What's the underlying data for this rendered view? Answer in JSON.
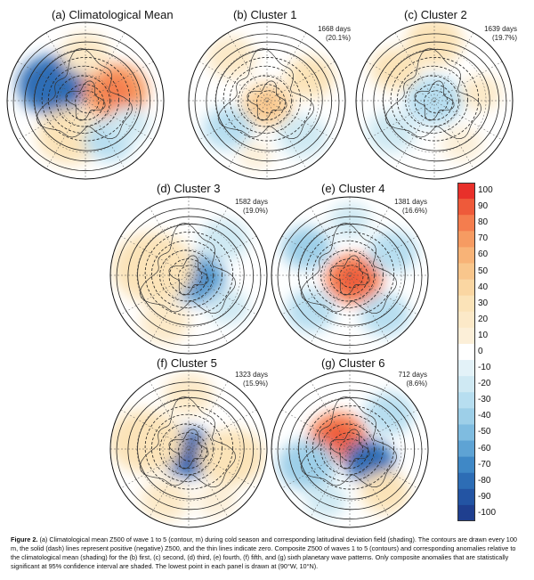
{
  "panels": [
    {
      "id": "a",
      "title": "(a) Climatological Mean",
      "days": "",
      "pct": "",
      "blobs": [
        {
          "dx": -0.42,
          "dy": -0.2,
          "r": 0.42,
          "v": -75
        },
        {
          "dx": 0.38,
          "dy": -0.12,
          "r": 0.4,
          "v": 70
        },
        {
          "dx": -0.2,
          "dy": 0.45,
          "r": 0.4,
          "v": 35
        },
        {
          "dx": 0.3,
          "dy": 0.5,
          "r": 0.3,
          "v": -30
        },
        {
          "dx": 0.0,
          "dy": -0.6,
          "r": 0.3,
          "v": 20
        },
        {
          "dx": 0.55,
          "dy": 0.3,
          "r": 0.25,
          "v": -15
        }
      ]
    },
    {
      "id": "b",
      "title": "(b) Cluster 1",
      "days": "1668 days",
      "pct": "(20.1%)",
      "blobs": [
        {
          "dx": 0.0,
          "dy": 0.05,
          "r": 0.32,
          "v": 45
        },
        {
          "dx": -0.45,
          "dy": -0.55,
          "r": 0.3,
          "v": 25
        },
        {
          "dx": 0.55,
          "dy": -0.3,
          "r": 0.3,
          "v": 30
        },
        {
          "dx": -0.5,
          "dy": 0.35,
          "r": 0.3,
          "v": -25
        },
        {
          "dx": 0.45,
          "dy": 0.45,
          "r": 0.3,
          "v": -20
        },
        {
          "dx": -0.15,
          "dy": 0.7,
          "r": 0.2,
          "v": 15
        }
      ]
    },
    {
      "id": "c",
      "title": "(c) Cluster 2",
      "days": "1639 days",
      "pct": "(19.7%)",
      "blobs": [
        {
          "dx": 0.0,
          "dy": 0.0,
          "r": 0.35,
          "v": -30
        },
        {
          "dx": 0.0,
          "dy": -0.75,
          "r": 0.35,
          "v": 35
        },
        {
          "dx": -0.5,
          "dy": -0.4,
          "r": 0.3,
          "v": 30
        },
        {
          "dx": 0.6,
          "dy": -0.1,
          "r": 0.25,
          "v": 25
        },
        {
          "dx": -0.55,
          "dy": 0.4,
          "r": 0.3,
          "v": -20
        },
        {
          "dx": 0.35,
          "dy": 0.55,
          "r": 0.25,
          "v": 15
        }
      ]
    },
    {
      "id": "d",
      "title": "(d) Cluster 3",
      "days": "1582 days",
      "pct": "(19.0%)",
      "blobs": [
        {
          "dx": 0.1,
          "dy": 0.05,
          "r": 0.35,
          "v": -60
        },
        {
          "dx": -0.45,
          "dy": -0.1,
          "r": 0.5,
          "v": 30
        },
        {
          "dx": 0.45,
          "dy": -0.45,
          "r": 0.3,
          "v": -20
        },
        {
          "dx": -0.3,
          "dy": 0.6,
          "r": 0.3,
          "v": 20
        },
        {
          "dx": 0.5,
          "dy": 0.4,
          "r": 0.25,
          "v": -15
        }
      ]
    },
    {
      "id": "e",
      "title": "(e) Cluster 4",
      "days": "1381 days",
      "pct": "(16.6%)",
      "blobs": [
        {
          "dx": 0.05,
          "dy": 0.05,
          "r": 0.35,
          "v": 80
        },
        {
          "dx": -0.55,
          "dy": -0.35,
          "r": 0.3,
          "v": -35
        },
        {
          "dx": 0.55,
          "dy": -0.3,
          "r": 0.3,
          "v": -30
        },
        {
          "dx": -0.5,
          "dy": 0.45,
          "r": 0.3,
          "v": -30
        },
        {
          "dx": 0.45,
          "dy": 0.5,
          "r": 0.3,
          "v": -25
        },
        {
          "dx": 0.0,
          "dy": -0.7,
          "r": 0.25,
          "v": -20
        }
      ]
    },
    {
      "id": "f",
      "title": "(f) Cluster 5",
      "days": "1323 days",
      "pct": "(15.9%)",
      "blobs": [
        {
          "dx": 0.0,
          "dy": 0.05,
          "r": 0.35,
          "v": -80
        },
        {
          "dx": -0.55,
          "dy": -0.1,
          "r": 0.45,
          "v": 35
        },
        {
          "dx": 0.55,
          "dy": 0.1,
          "r": 0.4,
          "v": 30
        },
        {
          "dx": 0.0,
          "dy": -0.7,
          "r": 0.3,
          "v": 20
        },
        {
          "dx": -0.3,
          "dy": 0.65,
          "r": 0.3,
          "v": 25
        },
        {
          "dx": 0.35,
          "dy": 0.65,
          "r": 0.25,
          "v": 15
        }
      ]
    },
    {
      "id": "g",
      "title": "(g) Cluster 6",
      "days": "712 days",
      "pct": "(8.6%)",
      "blobs": [
        {
          "dx": -0.15,
          "dy": -0.15,
          "r": 0.35,
          "v": 80
        },
        {
          "dx": 0.25,
          "dy": 0.15,
          "r": 0.3,
          "v": -75
        },
        {
          "dx": -0.55,
          "dy": 0.2,
          "r": 0.35,
          "v": -35
        },
        {
          "dx": 0.5,
          "dy": -0.45,
          "r": 0.3,
          "v": -25
        },
        {
          "dx": 0.45,
          "dy": 0.55,
          "r": 0.3,
          "v": 30
        },
        {
          "dx": -0.3,
          "dy": 0.65,
          "r": 0.25,
          "v": -20
        }
      ]
    }
  ],
  "colorbar": {
    "ticks": [
      100,
      90,
      80,
      70,
      60,
      50,
      40,
      30,
      20,
      10,
      0,
      -10,
      -20,
      -30,
      -40,
      -50,
      -60,
      -70,
      -80,
      -90,
      -100
    ],
    "colors": [
      "#e8302a",
      "#ee5a3a",
      "#f47d4e",
      "#f69b62",
      "#f8b377",
      "#f9c68c",
      "#fad6a2",
      "#fbe3b8",
      "#fce9c8",
      "#fcefd8",
      "#ffffff",
      "#e3f2f8",
      "#cfe9f3",
      "#b7def0",
      "#9dcfe8",
      "#7fbce0",
      "#5ea3d4",
      "#3f88c6",
      "#2d6db5",
      "#2354a3",
      "#1f3f8f"
    ]
  },
  "caption": {
    "label": "Figure 2.",
    "text": " (a) Climatological mean Z500 of wave 1 to 5 (contour, m) during cold season and corresponding latitudinal deviation field (shading). The contours are drawn every 100 m, the solid (dash) lines represent positive (negative) Z500, and the thin lines indicate zero. Composite Z500 of waves 1 to 5 (contours) and corresponding anomalies relative to the climatological mean (shading) for the (b) first, (c) second, (d) third, (e) fourth, (f) fifth, and (g) sixth planetary wave patterns. Only composite anomalies that are statistically significant at 95% confidence interval are shaded. The lowest point in each panel is drawn at (90°W, 10°N)."
  }
}
